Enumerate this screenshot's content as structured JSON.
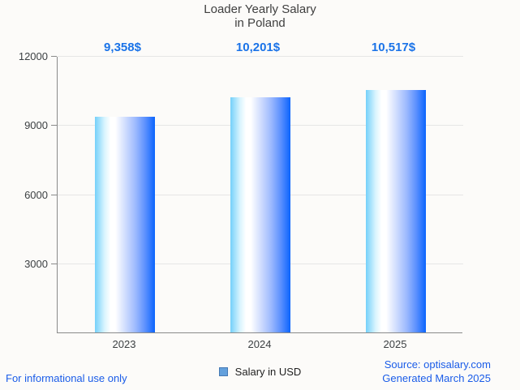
{
  "title": {
    "line1": "Loader Yearly Salary",
    "line2": "in Poland"
  },
  "chart_data": {
    "type": "bar",
    "title": "Loader Yearly Salary in Poland",
    "categories": [
      "2023",
      "2024",
      "2025"
    ],
    "values": [
      9358,
      10201,
      10517
    ],
    "value_labels": [
      "9,358$",
      "10,201$",
      "10,517$"
    ],
    "series_name": "Salary in USD",
    "xlabel": "",
    "ylabel": "",
    "ylim": [
      0,
      12000
    ],
    "yticks": [
      3000,
      6000,
      9000,
      12000
    ],
    "grid": true,
    "legend_position": "bottom"
  },
  "legend": {
    "label": "Salary in USD"
  },
  "footer": {
    "left": "For informational use only",
    "source": "Source: optisalary.com",
    "generated": "Generated March 2025"
  },
  "colors": {
    "background": "#fcfbf9",
    "title_text": "#3f3f3f",
    "accent_blue": "#1a73e8",
    "footer_blue": "#1a5ce8",
    "axis": "#8a8a8a",
    "gridline": "#e6e6e6",
    "bar_gradient_left": "#74d0fa",
    "bar_gradient_mid": "#ffffff",
    "bar_gradient_right": "#0b64fd",
    "legend_swatch_fill": "#63a0dc",
    "legend_swatch_border": "#4579b4"
  }
}
